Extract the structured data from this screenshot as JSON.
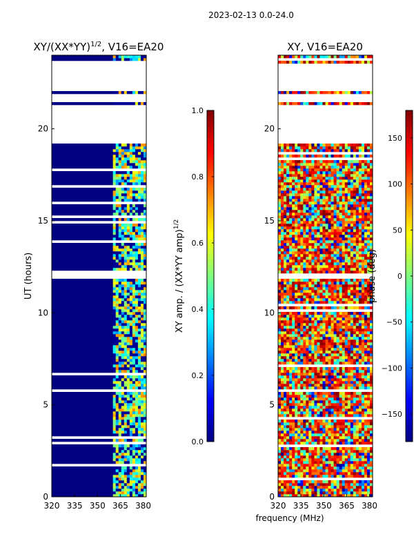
{
  "figure": {
    "suptitle": "2023-02-13 0.0-24.0",
    "xlabel": "frequency (MHz)"
  },
  "chart_data": [
    {
      "type": "heatmap",
      "title": "XY/(XX*YY)",
      "title_power": "1/2",
      "title_suffix": ", V16=EA20",
      "xlabel": "",
      "ylabel": "UT (hours)",
      "xlim": [
        320,
        382
      ],
      "ylim": [
        0,
        24
      ],
      "xticks": [
        320,
        335,
        350,
        365,
        380
      ],
      "yticks": [
        0,
        5,
        10,
        15,
        20
      ],
      "colorbar": {
        "label": "XY amp. / (XX*YY amp)",
        "label_power": "1/2",
        "range": [
          0.0,
          1.0
        ],
        "ticks": [
          "0.0",
          "0.2",
          "0.4",
          "0.6",
          "0.8",
          "1.0"
        ],
        "colormap": "jet"
      },
      "data_summary": {
        "band_low_MHz": [
          320,
          361
        ],
        "band_low_value": 0.0,
        "band_high_MHz": [
          361,
          382
        ],
        "band_high_value_range": [
          0.25,
          0.75
        ],
        "flagged_UT_ranges_hours": [
          [
            5.7,
            5.9
          ],
          [
            11.9,
            12.1
          ],
          [
            19.2,
            21.3
          ],
          [
            21.5,
            21.9
          ],
          [
            22.0,
            23.5
          ]
        ]
      }
    },
    {
      "type": "heatmap",
      "title": "XY, V16=EA20",
      "xlabel": "",
      "ylabel": "",
      "xlim": [
        320,
        382
      ],
      "ylim": [
        0,
        24
      ],
      "xticks": [
        320,
        335,
        350,
        365,
        380
      ],
      "yticks": [
        0,
        5,
        10,
        15,
        20
      ],
      "colorbar": {
        "label": "phase (deg)",
        "range": [
          -180,
          180
        ],
        "ticks": [
          "−150",
          "−100",
          "−50",
          "0",
          "50",
          "100",
          "150"
        ],
        "colormap": "jet"
      },
      "data_summary": {
        "phase_range_deg": [
          -180,
          180
        ],
        "dominant_phase_deg": 140,
        "flagged_UT_ranges_hours": [
          [
            5.7,
            5.9
          ],
          [
            11.9,
            12.1
          ],
          [
            19.2,
            21.3
          ],
          [
            21.5,
            21.9
          ],
          [
            22.0,
            23.5
          ]
        ]
      }
    }
  ],
  "colors": {
    "jet_stops": [
      "#00007f",
      "#0000ff",
      "#007fff",
      "#00ffff",
      "#7fff7f",
      "#ffff00",
      "#ff7f00",
      "#ff0000",
      "#7f0000"
    ]
  }
}
